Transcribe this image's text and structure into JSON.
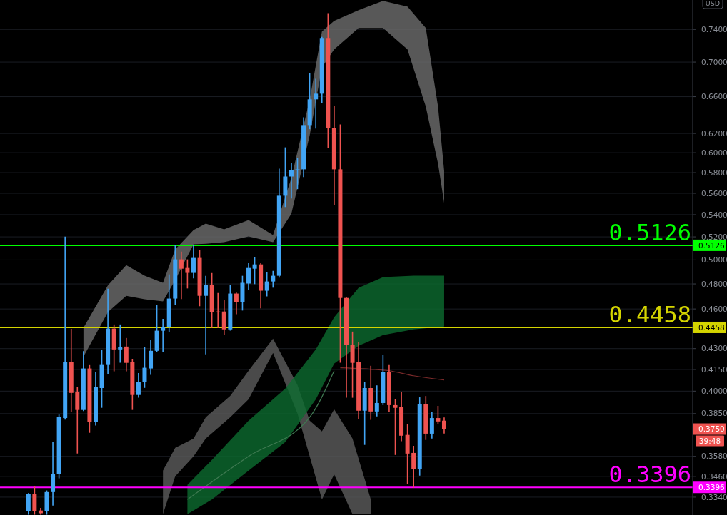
{
  "chart_data": {
    "type": "candlestick",
    "categories": [
      null,
      null,
      null,
      null,
      null,
      null,
      null,
      null,
      null,
      null,
      null,
      null,
      null,
      null,
      null,
      null,
      null,
      null,
      null,
      null,
      null,
      null,
      null,
      null,
      null,
      null,
      null,
      null,
      null,
      null,
      null,
      null,
      null,
      null,
      null,
      null,
      null,
      null,
      null,
      null,
      null,
      null,
      null,
      null,
      null,
      null,
      null,
      null,
      null,
      null,
      null,
      null,
      null,
      null,
      null,
      null,
      null,
      null,
      null,
      null,
      null,
      null,
      null,
      null,
      null,
      null,
      null,
      null,
      null,
      null,
      null,
      null,
      null,
      null,
      null,
      null,
      null,
      null,
      null,
      null,
      null,
      null,
      null,
      null,
      null,
      null,
      null,
      null,
      null,
      null,
      null,
      null,
      null,
      null,
      null,
      null,
      null,
      null,
      null,
      null,
      null,
      null,
      null,
      null,
      null,
      null,
      null,
      null,
      null,
      null,
      null,
      null,
      null
    ],
    "ohlc": [
      null,
      null,
      null,
      null,
      [
        0.326,
        0.336,
        0.3245,
        0.3356
      ],
      [
        0.3356,
        0.3397,
        0.3245,
        0.326
      ],
      [
        0.3265,
        0.3276,
        0.3245,
        0.325
      ],
      [
        0.326,
        0.3375,
        0.3245,
        0.3369
      ],
      [
        0.3369,
        0.3663,
        0.3296,
        0.3472
      ],
      [
        0.3472,
        0.384,
        0.3452,
        0.3826
      ],
      [
        0.3821,
        0.5197,
        0.3815,
        0.4202
      ],
      [
        0.4202,
        0.4443,
        0.3864,
        0.3988
      ],
      [
        0.3992,
        0.4026,
        0.3601,
        0.3874
      ],
      [
        0.3874,
        0.4278,
        0.387,
        0.4157
      ],
      [
        0.4157,
        0.4177,
        0.373,
        0.3795
      ],
      [
        0.3795,
        0.4126,
        0.3776,
        0.4026
      ],
      [
        0.4021,
        0.4289,
        0.3892,
        0.4182
      ],
      [
        0.4182,
        0.4756,
        0.4121,
        0.4449
      ],
      [
        0.4449,
        0.4476,
        0.4141,
        0.4294
      ],
      [
        0.4294,
        0.4476,
        0.4202,
        0.431
      ],
      [
        0.4315,
        0.4374,
        0.4141,
        0.4197
      ],
      [
        0.4202,
        0.4222,
        0.3878,
        0.3974
      ],
      [
        0.3974,
        0.4121,
        0.3959,
        0.4061
      ],
      [
        0.4061,
        0.4305,
        0.4026,
        0.4162
      ],
      [
        0.4157,
        0.4357,
        0.4116,
        0.4284
      ],
      [
        0.4284,
        0.4626,
        0.4278,
        0.4433
      ],
      [
        0.4433,
        0.4519,
        0.4278,
        0.4458
      ],
      [
        0.4463,
        0.4874,
        0.4427,
        0.4682
      ],
      [
        0.4682,
        0.5122,
        0.4637,
        0.5005
      ],
      [
        0.5005,
        0.5066,
        0.4682,
        0.4926
      ],
      [
        0.4932,
        0.5,
        0.4768,
        0.4891
      ],
      [
        0.4891,
        0.5122,
        0.485,
        0.5017
      ],
      [
        0.5017,
        0.5078,
        0.4626,
        0.4704
      ],
      [
        0.4704,
        0.4862,
        0.4263,
        0.4789
      ],
      [
        0.4789,
        0.4885,
        0.4458,
        0.4575
      ],
      [
        0.458,
        0.4722,
        0.4458,
        0.4575
      ],
      [
        0.458,
        0.4665,
        0.4406,
        0.4443
      ],
      [
        0.4443,
        0.4785,
        0.4438,
        0.4722
      ],
      [
        0.4722,
        0.4725,
        0.4564,
        0.4653
      ],
      [
        0.4653,
        0.4862,
        0.4592,
        0.4809
      ],
      [
        0.4803,
        0.4968,
        0.4756,
        0.4932
      ],
      [
        0.4926,
        0.5017,
        0.4803,
        0.4962
      ],
      [
        0.4962,
        0.4968,
        0.4609,
        0.4745
      ],
      [
        0.4745,
        0.4891,
        0.4704,
        0.482
      ],
      [
        0.482,
        0.4903,
        0.4774,
        0.4867
      ],
      [
        0.4867,
        0.5833,
        0.4856,
        0.5577
      ],
      [
        0.5577,
        0.6049,
        0.5476,
        0.5762
      ],
      [
        0.5762,
        0.589,
        0.5556,
        0.5826
      ],
      [
        0.5826,
        0.594,
        0.5645,
        0.5833
      ],
      [
        0.5833,
        0.6366,
        0.5762,
        0.6289
      ],
      [
        0.6289,
        0.6863,
        0.6251,
        0.657
      ],
      [
        0.657,
        0.6797,
        0.6258,
        0.6634
      ],
      [
        0.6634,
        0.73,
        0.6538,
        0.7293
      ],
      [
        0.7293,
        0.76,
        0.6056,
        0.6258
      ],
      [
        0.6258,
        0.649,
        0.5496,
        0.5833
      ],
      [
        0.5833,
        0.6289,
        0.4202,
        0.4687
      ],
      [
        0.4687,
        0.4692,
        0.3959,
        0.4326
      ],
      [
        0.4326,
        0.4422,
        0.3959,
        0.4197
      ],
      [
        0.4202,
        0.4347,
        0.3817,
        0.3869
      ],
      [
        0.3869,
        0.4061,
        0.3654,
        0.4021
      ],
      [
        0.4021,
        0.4172,
        0.3813,
        0.3864
      ],
      [
        0.3864,
        0.4036,
        0.3836,
        0.392
      ],
      [
        0.392,
        0.4248,
        0.391,
        0.4131
      ],
      [
        0.4131,
        0.4177,
        0.3864,
        0.3906
      ],
      [
        0.3906,
        0.394,
        0.3592,
        0.3888
      ],
      [
        0.3892,
        0.3988,
        0.3677,
        0.3708
      ],
      [
        0.3713,
        0.3776,
        0.3418,
        0.3597
      ],
      [
        0.3601,
        0.3641,
        0.3397,
        0.3502
      ],
      [
        0.3502,
        0.3954,
        0.3468,
        0.3911
      ],
      [
        0.3915,
        0.3963,
        0.3685,
        0.3721
      ],
      [
        0.3721,
        0.386,
        0.3694,
        0.3821
      ],
      [
        0.3821,
        0.3897,
        0.3786,
        0.3799
      ],
      [
        0.3804,
        0.3821,
        0.3725,
        0.375
      ],
      null,
      null,
      null,
      null,
      null,
      null,
      null,
      null,
      null,
      null,
      null,
      null,
      null,
      null,
      null,
      null,
      null,
      null,
      null,
      null,
      null,
      null,
      null,
      null,
      null,
      null,
      null,
      null,
      null,
      null,
      null,
      null,
      null,
      null,
      null,
      null,
      null,
      null,
      null,
      null
    ],
    "colors": [
      null,
      null,
      null,
      null,
      "#42a5f5",
      "#ef5350",
      "#ef5350",
      "#42a5f5",
      "#42a5f5",
      "#42a5f5",
      "#42a5f5",
      "#ef5350",
      "#ef5350",
      "#42a5f5",
      "#ef5350",
      "#42a5f5",
      "#42a5f5",
      "#42a5f5",
      "#ef5350",
      "#42a5f5",
      "#ef5350",
      "#ef5350",
      "#42a5f5",
      "#42a5f5",
      "#42a5f5",
      "#42a5f5",
      "#42a5f5",
      "#42a5f5",
      "#42a5f5",
      "#ef5350",
      "#ef5350",
      "#42a5f5",
      "#ef5350",
      "#42a5f5",
      "#ef5350",
      "#ef5350",
      "#ef5350",
      "#42a5f5",
      "#ef5350",
      "#42a5f5",
      "#42a5f5",
      "#42a5f5",
      "#ef5350",
      "#42a5f5",
      "#42a5f5",
      "#42a5f5",
      "#42a5f5",
      "#42a5f5",
      "#42a5f5",
      "#42a5f5",
      "#42a5f5",
      "#42a5f5",
      "#42a5f5",
      "#ef5350",
      "#ef5350",
      "#ef5350",
      "#ef5350",
      "#ef5350",
      "#ef5350",
      "#42a5f5",
      "#ef5350",
      "#42a5f5",
      "#42a5f5",
      "#ef5350",
      "#ef5350",
      "#ef5350",
      "#ef5350",
      "#ef5350",
      "#42a5f5",
      "#ef5350",
      "#42a5f5",
      "#ef5350",
      "#ef5350",
      null,
      null,
      null,
      null,
      null,
      null,
      null,
      null,
      null,
      null,
      null,
      null,
      null,
      null,
      null,
      null,
      null,
      null,
      null,
      null,
      null,
      null,
      null,
      null,
      null,
      null,
      null,
      null,
      null,
      null,
      null,
      null,
      null,
      null,
      null,
      null,
      null,
      null,
      null,
      null
    ],
    "series": [
      {
        "type": "line",
        "color": "#6e6e6e",
        "values": [
          null,
          null,
          null,
          null,
          null,
          null,
          null,
          null,
          null,
          null,
          null,
          null,
          null,
          null,
          null,
          null,
          null,
          null,
          null,
          null,
          null,
          null,
          null,
          null,
          null,
          null,
          null,
          null,
          null,
          null,
          null,
          null,
          null,
          null,
          null,
          null,
          null,
          null,
          null,
          null,
          null,
          null,
          null,
          null,
          null,
          null,
          null,
          null,
          null,
          null,
          null,
          null,
          null,
          null,
          null,
          null,
          null,
          null,
          null,
          null,
          null,
          null,
          null,
          null,
          null,
          null,
          null,
          null,
          null,
          null,
          null,
          null,
          null,
          null,
          null,
          null,
          null,
          null,
          null,
          null,
          null,
          null,
          null,
          null,
          null,
          null,
          null,
          null,
          null,
          null,
          null,
          null,
          null,
          null,
          null,
          null,
          null,
          null,
          null,
          null,
          null,
          null,
          null,
          null,
          null,
          null,
          null,
          null,
          null,
          null,
          null,
          null,
          null
        ],
        "upper": [
          null,
          null,
          null,
          null,
          null,
          null,
          null,
          null,
          null,
          null,
          null,
          null,
          null,
          0.4455,
          null,
          null,
          null,
          0.4789,
          null,
          null,
          0.4956,
          null,
          null,
          0.4867,
          null,
          null,
          0.4809,
          null,
          0.509,
          null,
          null,
          0.5261,
          null,
          0.5318,
          null,
          null,
          0.5267,
          null,
          null,
          null,
          0.5351,
          null,
          null,
          null,
          0.5216,
          null,
          null,
          0.5748,
          null,
          null,
          0.657,
          null,
          0.7373,
          null,
          0.7509,
          null,
          null,
          null,
          0.7647,
          null,
          null,
          null,
          0.7768,
          null,
          null,
          null,
          0.7693,
          null,
          null,
          0.7418,
          null,
          0.649,
          0.5818,
          null,
          null,
          null,
          null,
          null,
          null,
          null,
          null,
          null,
          null,
          null,
          null,
          null,
          null,
          null,
          null,
          null,
          null,
          null,
          null,
          null,
          null,
          null,
          null,
          null,
          null,
          null,
          null,
          null,
          null,
          null,
          null,
          null,
          null,
          null,
          null,
          null,
          null,
          null,
          null
        ],
        "lower": [
          null,
          null,
          null,
          null,
          null,
          null,
          null,
          null,
          null,
          null,
          null,
          null,
          null,
          0.4242,
          null,
          null,
          null,
          0.4575,
          null,
          null,
          0.4704,
          null,
          null,
          0.4676,
          null,
          null,
          0.4659,
          null,
          0.4832,
          null,
          null,
          0.5134,
          null,
          0.514,
          null,
          null,
          0.5153,
          null,
          null,
          null,
          0.5203,
          null,
          null,
          null,
          0.5153,
          null,
          null,
          0.5408,
          null,
          null,
          0.6182,
          null,
          0.6938,
          null,
          0.7153,
          null,
          null,
          null,
          0.7418,
          null,
          null,
          null,
          0.7418,
          null,
          null,
          null,
          0.7153,
          null,
          null,
          0.649,
          null,
          0.589,
          0.5509,
          null,
          null,
          null,
          null,
          null,
          null,
          null,
          null,
          null,
          null,
          null,
          null,
          null,
          null,
          null,
          null,
          null,
          null,
          null,
          null,
          null,
          null,
          null,
          null,
          null,
          null,
          null,
          null,
          null,
          null,
          null,
          null,
          null,
          null,
          null,
          null,
          null,
          null,
          null,
          null
        ]
      },
      {
        "type": "line",
        "color": "#5c5c5c",
        "values": [
          null,
          null,
          null,
          null,
          null,
          null,
          null,
          null,
          null,
          null,
          null,
          null,
          null,
          null,
          null,
          null,
          null,
          null,
          null,
          null,
          null,
          null,
          null,
          null,
          null,
          null,
          null,
          null,
          null,
          null,
          null,
          null,
          null,
          null,
          null,
          null,
          null,
          null,
          null,
          null,
          null,
          null,
          null,
          null,
          null,
          null,
          null,
          null,
          null,
          null,
          null,
          null,
          null,
          null,
          null,
          null,
          null,
          null,
          null,
          null,
          null,
          null,
          null,
          null,
          null,
          null,
          null,
          null,
          null,
          null,
          null,
          null,
          null,
          null,
          null,
          null,
          null,
          null,
          null,
          null,
          null,
          null,
          null,
          null,
          null,
          null,
          null,
          null,
          null,
          null,
          null,
          null,
          null,
          null,
          null,
          null,
          null,
          null,
          null,
          null,
          null,
          null,
          null,
          null,
          null,
          null,
          null,
          null,
          null,
          null,
          null,
          null,
          null
        ],
        "upper": [
          null,
          null,
          null,
          null,
          null,
          null,
          null,
          null,
          null,
          null,
          null,
          null,
          null,
          null,
          null,
          null,
          null,
          null,
          null,
          null,
          null,
          null,
          null,
          null,
          null,
          null,
          0.3494,
          null,
          0.3632,
          null,
          null,
          0.369,
          null,
          0.3826,
          null,
          null,
          null,
          0.3968,
          null,
          null,
          0.4141,
          null,
          null,
          null,
          0.4374,
          null,
          null,
          null,
          0.4042,
          null,
          0.3804,
          null,
          0.3735,
          null,
          0.3878,
          null,
          null,
          0.369,
          null,
          null,
          0.3327,
          null,
          null,
          null,
          null,
          null,
          null,
          null,
          null,
          null,
          null,
          null,
          null,
          null,
          null,
          null,
          null,
          null,
          null,
          null,
          null,
          null,
          null,
          null,
          null,
          null,
          null,
          null,
          null,
          null,
          null,
          null,
          null,
          null,
          null,
          null,
          null,
          null,
          null,
          null,
          null,
          null,
          null,
          null,
          null,
          null,
          null,
          null,
          null,
          null,
          null,
          null,
          null
        ],
        "lower": [
          null,
          null,
          null,
          null,
          null,
          null,
          null,
          null,
          null,
          null,
          null,
          null,
          null,
          null,
          null,
          null,
          null,
          null,
          null,
          null,
          null,
          null,
          null,
          null,
          null,
          null,
          0.3245,
          null,
          0.346,
          null,
          null,
          0.358,
          null,
          0.369,
          null,
          null,
          null,
          0.3826,
          null,
          null,
          0.3945,
          null,
          null,
          null,
          0.4269,
          null,
          null,
          null,
          0.385,
          null,
          0.358,
          null,
          0.3327,
          null,
          0.3472,
          null,
          null,
          0.3245,
          null,
          null,
          0.3245,
          null,
          null,
          null,
          null,
          null,
          null,
          null,
          null,
          null,
          null,
          null,
          null,
          null,
          null,
          null,
          null,
          null,
          null,
          null,
          null,
          null,
          null,
          null,
          null,
          null,
          null,
          null,
          null,
          null,
          null,
          null,
          null,
          null,
          null,
          null,
          null,
          null,
          null,
          null,
          null,
          null,
          null,
          null,
          null,
          null,
          null,
          null,
          null,
          null,
          null,
          null,
          null
        ]
      },
      {
        "type": "line",
        "color": "#0d6b30",
        "values": [
          null,
          null,
          null,
          null,
          null,
          null,
          null,
          null,
          null,
          null,
          null,
          null,
          null,
          null,
          null,
          null,
          null,
          null,
          null,
          null,
          null,
          null,
          null,
          null,
          null,
          null,
          null,
          null,
          null,
          null,
          null,
          null,
          null,
          null,
          null,
          null,
          null,
          null,
          null,
          null,
          null,
          null,
          null,
          null,
          null,
          null,
          null,
          null,
          null,
          null,
          null,
          null,
          null,
          null,
          null,
          null,
          null,
          null,
          null,
          null,
          null,
          null,
          null,
          null,
          null,
          null,
          null,
          null,
          null,
          null,
          null,
          null,
          null,
          null,
          null,
          null,
          null,
          null,
          null,
          null,
          null,
          null,
          null,
          null,
          null,
          null,
          null,
          null,
          null,
          null,
          null,
          null,
          null,
          null,
          null,
          null,
          null,
          null,
          null,
          null,
          null,
          null,
          null,
          null,
          null,
          null,
          null,
          null,
          null,
          null,
          null,
          null,
          null
        ],
        "upper": [
          null,
          null,
          null,
          null,
          null,
          null,
          null,
          null,
          null,
          null,
          null,
          null,
          null,
          null,
          null,
          null,
          null,
          null,
          null,
          null,
          null,
          null,
          null,
          null,
          null,
          null,
          null,
          null,
          null,
          null,
          0.341,
          null,
          null,
          null,
          0.3558,
          null,
          null,
          null,
          null,
          null,
          0.3804,
          null,
          null,
          null,
          null,
          null,
          0.4017,
          null,
          null,
          null,
          null,
          0.4294,
          null,
          null,
          0.4536,
          null,
          null,
          null,
          0.4768,
          null,
          null,
          null,
          0.4856,
          null,
          null,
          null,
          null,
          0.4867,
          null,
          null,
          null,
          null,
          0.4867,
          null,
          null,
          null,
          null,
          null,
          null,
          null,
          null,
          null,
          null,
          null,
          null,
          null,
          null,
          null,
          null,
          null,
          null,
          null,
          null,
          null,
          null,
          null,
          null,
          null,
          null,
          null,
          null,
          null,
          null,
          null,
          null,
          null,
          null,
          null,
          null,
          null,
          null,
          null,
          null
        ],
        "lower": [
          null,
          null,
          null,
          null,
          null,
          null,
          null,
          null,
          null,
          null,
          null,
          null,
          null,
          null,
          null,
          null,
          null,
          null,
          null,
          null,
          null,
          null,
          null,
          null,
          null,
          null,
          null,
          null,
          null,
          null,
          0.3245,
          null,
          null,
          null,
          0.3327,
          null,
          null,
          null,
          null,
          null,
          0.3494,
          null,
          null,
          null,
          null,
          null,
          0.3668,
          null,
          null,
          null,
          null,
          0.3945,
          null,
          null,
          0.4192,
          null,
          null,
          null,
          0.4321,
          null,
          null,
          null,
          0.44,
          null,
          null,
          null,
          null,
          0.4443,
          null,
          null,
          null,
          null,
          0.4465,
          null,
          null,
          null,
          null,
          null,
          null,
          null,
          null,
          null,
          null,
          null,
          null,
          null,
          null,
          null,
          null,
          null,
          null,
          null,
          null,
          null,
          null,
          null,
          null,
          null,
          null,
          null,
          null,
          null,
          null,
          null,
          null,
          null,
          null,
          null,
          null,
          null,
          null,
          null,
          null
        ]
      },
      {
        "type": "line",
        "color": "#7a2a2a",
        "values": [
          null,
          null,
          null,
          null,
          null,
          null,
          null,
          null,
          null,
          null,
          null,
          null,
          null,
          null,
          null,
          null,
          null,
          null,
          null,
          null,
          null,
          null,
          null,
          null,
          null,
          null,
          null,
          null,
          null,
          null,
          null,
          null,
          null,
          null,
          null,
          null,
          null,
          null,
          null,
          null,
          null,
          null,
          null,
          null,
          null,
          null,
          null,
          null,
          null,
          null,
          null,
          null,
          null,
          null,
          null,
          0.4162,
          null,
          null,
          null,
          null,
          0.4152,
          null,
          null,
          0.4141,
          null,
          null,
          null,
          0.4106,
          null,
          null,
          null,
          null,
          0.4077,
          null,
          null,
          null,
          null,
          null,
          null,
          null,
          null,
          null,
          null,
          null,
          null,
          null,
          null,
          null,
          null,
          null,
          null,
          null,
          null,
          null,
          null,
          null,
          null,
          null,
          null,
          null,
          null,
          null,
          null,
          null,
          null,
          null,
          null,
          null,
          null,
          null,
          null,
          null,
          null
        ]
      },
      {
        "type": "line",
        "color": "#3f7a52",
        "values": [
          null,
          null,
          null,
          null,
          null,
          null,
          null,
          null,
          null,
          null,
          null,
          null,
          null,
          null,
          null,
          null,
          null,
          null,
          null,
          null,
          null,
          null,
          null,
          null,
          null,
          null,
          null,
          null,
          null,
          null,
          0.3327,
          null,
          null,
          null,
          null,
          null,
          null,
          null,
          null,
          null,
          0.358,
          null,
          null,
          null,
          null,
          null,
          null,
          null,
          null,
          null,
          0.3826,
          null,
          null,
          null,
          0.4141,
          null,
          null,
          null,
          null,
          null,
          null,
          null,
          null,
          null,
          null,
          null,
          null,
          null,
          null,
          null,
          null,
          null,
          null,
          null,
          null,
          null,
          null,
          null,
          null,
          null,
          null,
          null,
          null,
          null,
          null,
          null,
          null,
          null,
          null,
          null,
          null,
          null,
          null,
          null,
          null,
          null,
          null,
          null,
          null,
          null,
          null,
          null,
          null,
          null,
          null,
          null,
          null,
          null,
          null,
          null,
          null,
          null,
          null
        ]
      }
    ],
    "ylim": [
      0.324,
      0.778
    ],
    "yticks": [
      {
        "value": 0.74,
        "label": "0.7400"
      },
      {
        "value": 0.7,
        "label": "0.7000"
      },
      {
        "value": 0.66,
        "label": "0.6600"
      },
      {
        "value": 0.62,
        "label": "0.6200"
      },
      {
        "value": 0.6,
        "label": "0.6000"
      },
      {
        "value": 0.58,
        "label": "0.5800"
      },
      {
        "value": 0.56,
        "label": "0.5600"
      },
      {
        "value": 0.54,
        "label": "0.5400"
      },
      {
        "value": 0.52,
        "label": "0.5200"
      },
      {
        "value": 0.5,
        "label": "0.5000"
      },
      {
        "value": 0.48,
        "label": "0.4800"
      },
      {
        "value": 0.46,
        "label": "0.4600"
      },
      {
        "value": 0.43,
        "label": "0.4300"
      },
      {
        "value": 0.415,
        "label": "0.4150"
      },
      {
        "value": 0.4,
        "label": "0.4000"
      },
      {
        "value": 0.385,
        "label": "0.3850"
      },
      {
        "value": 0.358,
        "label": "0.3580"
      },
      {
        "value": 0.346,
        "label": "0.3460"
      },
      {
        "value": 0.334,
        "label": "0.3340"
      }
    ],
    "log": true,
    "grid": "y",
    "tick_labels": "y",
    "ref_lines": [
      {
        "axis": "y",
        "value": 0.5126,
        "label": "0.5126",
        "color": "#00ff00",
        "line_style": "solid"
      },
      {
        "axis": "y",
        "value": 0.4458,
        "label": "0.4458",
        "color": "#d4d400",
        "line_style": "solid"
      },
      {
        "axis": "y",
        "value": 0.3396,
        "label": "0.3396",
        "color": "#ff00ff",
        "line_style": "solid"
      },
      {
        "axis": "y",
        "value": 0.375,
        "label": "0.3750",
        "color": "#ef5350",
        "line_style": "dotted"
      }
    ],
    "annotations": [
      "USD",
      "39:48"
    ]
  }
}
